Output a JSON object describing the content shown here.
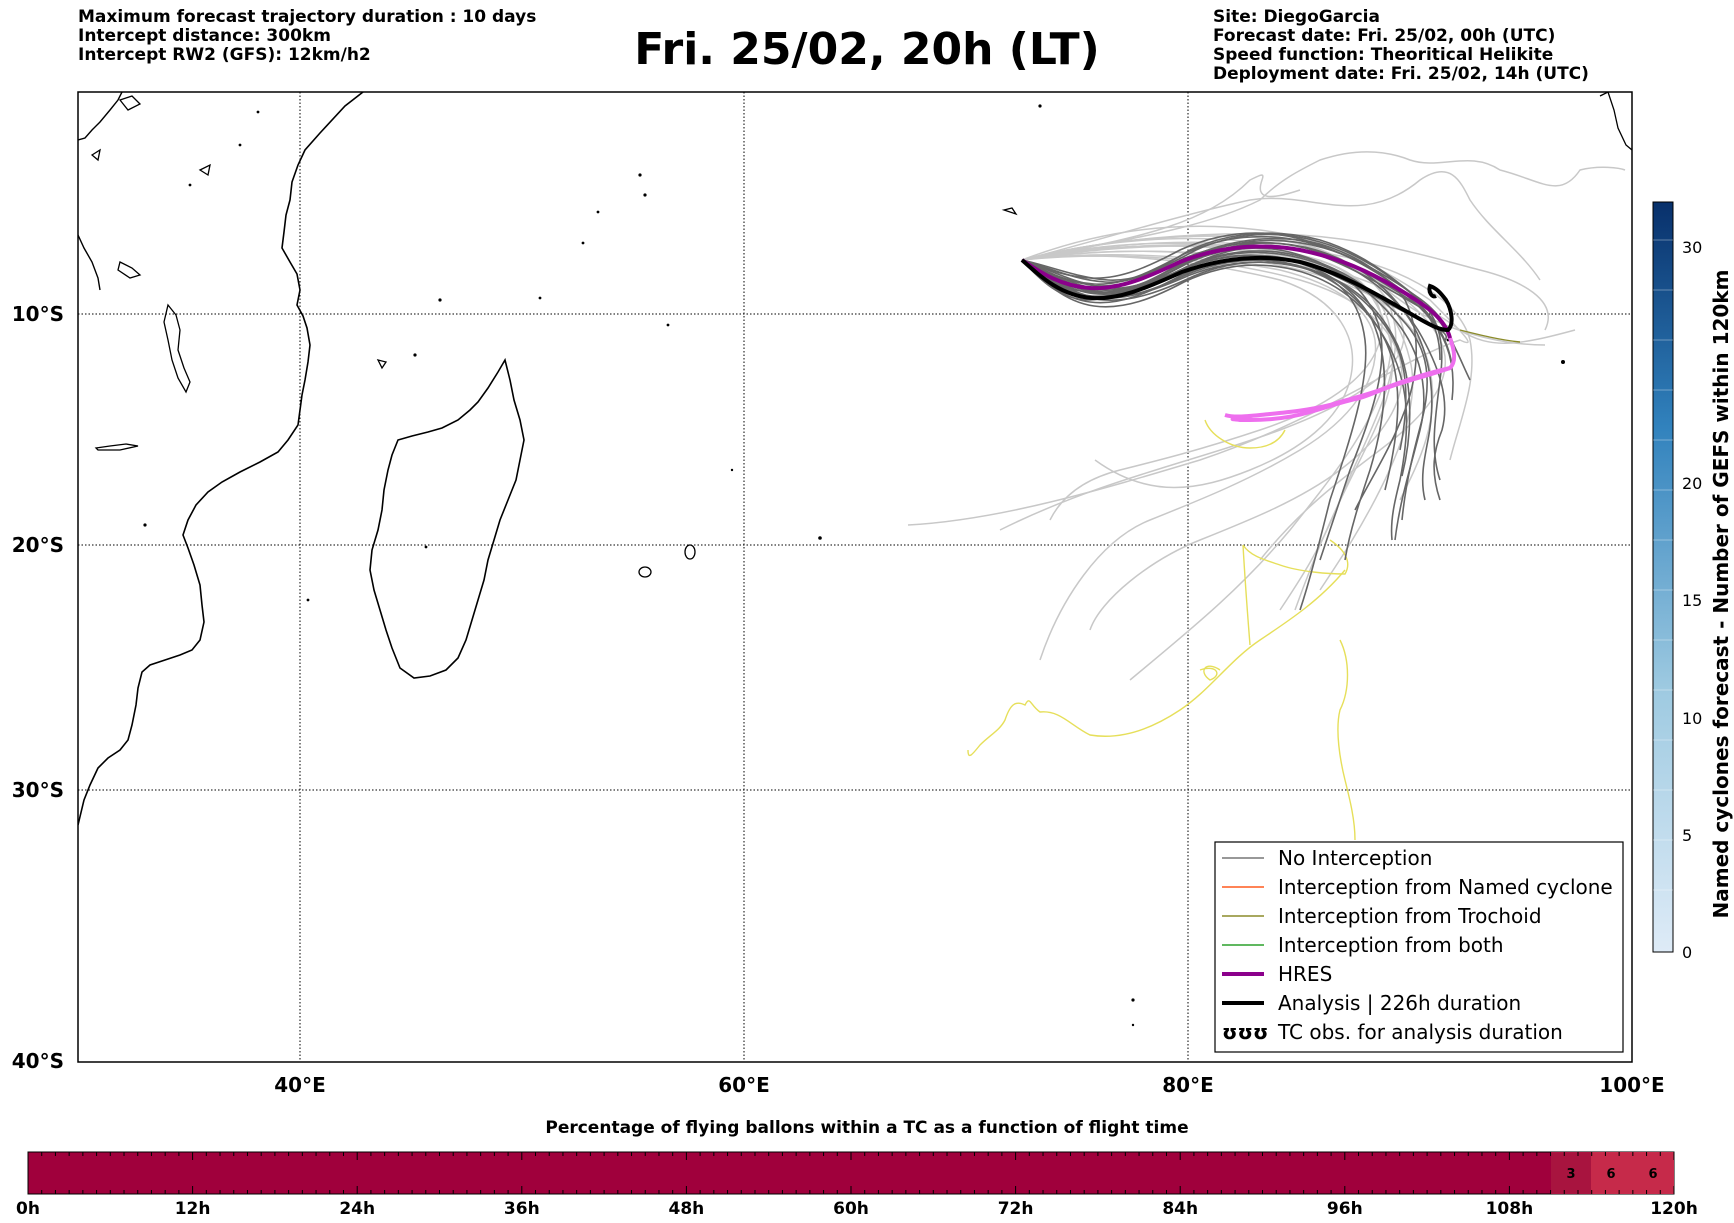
{
  "header": {
    "left": [
      "Maximum forecast trajectory duration : 10 days",
      "Intercept distance: 300km",
      "Intercept RW2 (GFS):  12km/h2"
    ],
    "title": "Fri. 25/02, 20h (LT)",
    "right": [
      "Site: DiegoGarcia",
      "Forecast date: Fri. 25/02, 00h (UTC)",
      "Speed function: Theoritical Helikite",
      "Deployment date: Fri. 25/02, 14h (UTC)"
    ]
  },
  "map": {
    "lon_ticks": [
      "40°E",
      "60°E",
      "80°E",
      "100°E"
    ],
    "lat_ticks": [
      "10°S",
      "20°S",
      "30°S",
      "40°S"
    ]
  },
  "legend": {
    "items": [
      {
        "label": "No Interception",
        "color": "#777777"
      },
      {
        "label": "Interception from Named cyclone",
        "color": "#ff5a1f"
      },
      {
        "label": "Interception from Trochoid",
        "color": "#8b8b2a"
      },
      {
        "label": "Interception from both",
        "color": "#2ca02c"
      },
      {
        "label": "HRES",
        "color": "#8b008b"
      },
      {
        "label": "Analysis | 226h duration",
        "color": "#000000"
      },
      {
        "label": "TC obs. for analysis duration",
        "symbol": "ʊʊʊ"
      }
    ]
  },
  "colorbar": {
    "label": "Named cyclones forecast - Number of GEFS within 120km",
    "ticks": [
      "0",
      "5",
      "10",
      "15",
      "20",
      "30"
    ],
    "top_color": "#08306b",
    "bottom_color": "#deebf7"
  },
  "flight_bar": {
    "title": "Percentage of flying ballons within a TC as a function of flight time",
    "ticks": [
      "0h",
      "12h",
      "24h",
      "36h",
      "48h",
      "60h",
      "72h",
      "84h",
      "96h",
      "108h",
      "120h"
    ],
    "cells": [
      {
        "value": "3",
        "color": "#a8143f"
      },
      {
        "value": "6",
        "color": "#c62a4a"
      },
      {
        "value": "6",
        "color": "#c62a4a"
      }
    ],
    "base_color": "#a0003c"
  }
}
